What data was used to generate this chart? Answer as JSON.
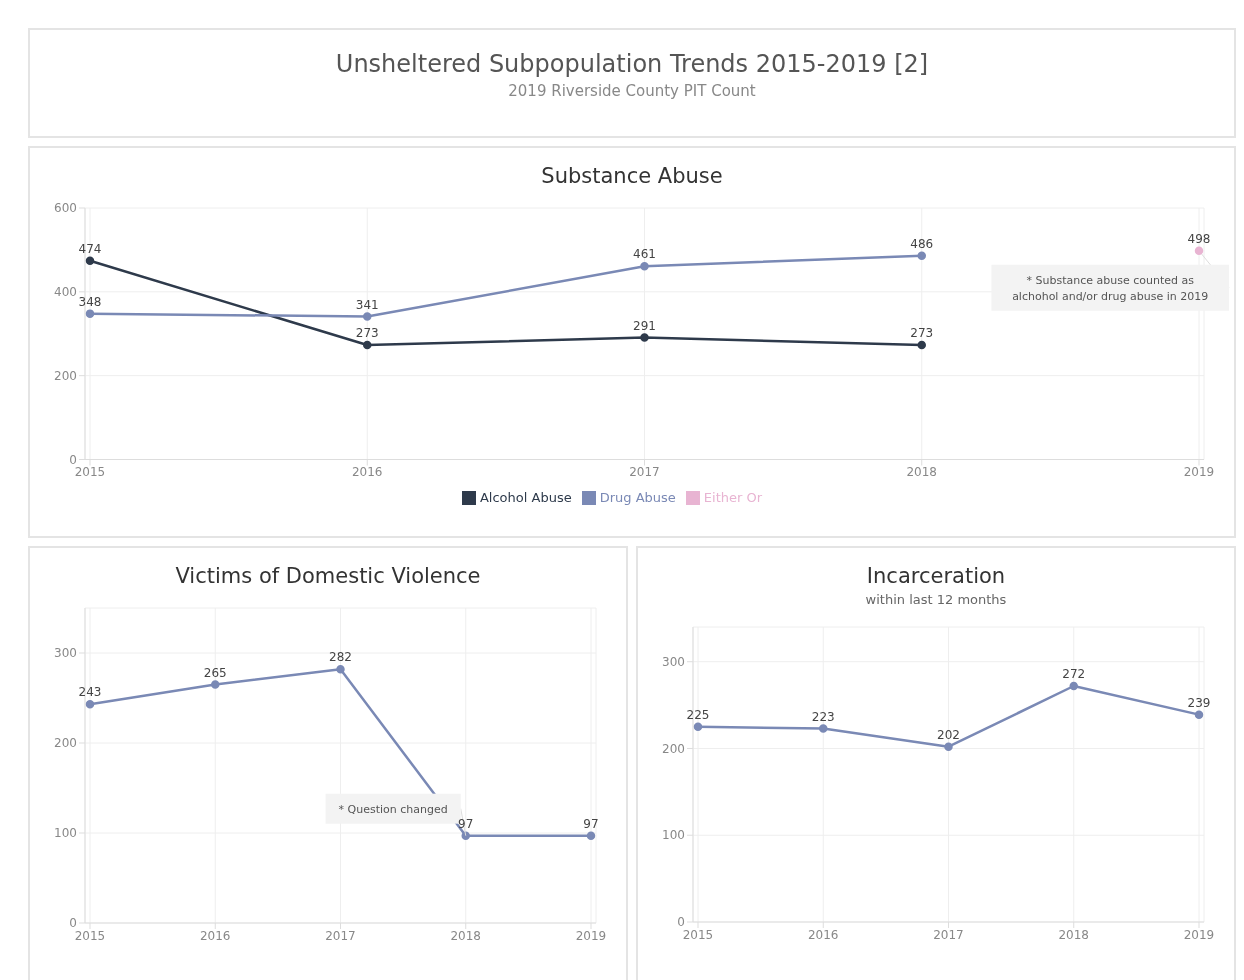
{
  "chart_data": [
    {
      "type": "other",
      "title": "Unsheltered Subpopulation Trends 2015-2019 [2]",
      "subtitle": "2019 Riverside County PIT Count"
    },
    {
      "type": "line",
      "title": "Substance Abuse",
      "categories": [
        "2015",
        "2016",
        "2017",
        "2018",
        "2019"
      ],
      "series": [
        {
          "name": "Alcohol Abuse",
          "color": "#2e3a4b",
          "values": [
            474,
            273,
            291,
            273,
            null
          ]
        },
        {
          "name": "Drug Abuse",
          "color": "#7a89b5",
          "values": [
            348,
            341,
            461,
            486,
            null
          ]
        },
        {
          "name": "Either Or",
          "color": "#e8b4d2",
          "values": [
            null,
            null,
            null,
            null,
            498
          ]
        }
      ],
      "ylim": [
        0,
        600
      ],
      "yticks": [
        0,
        200,
        400,
        600
      ],
      "grid": true,
      "legend": "bottom",
      "marker": "circle",
      "line_style": "solid",
      "data_labels": true,
      "annotations": [
        {
          "text": "* Substance abuse counted as alchohol and/or drug abuse in 2019",
          "x": "2019",
          "y": 498
        }
      ]
    },
    {
      "type": "line",
      "title": "Victims of Domestic Violence",
      "categories": [
        "2015",
        "2016",
        "2017",
        "2018",
        "2019"
      ],
      "series": [
        {
          "color": "#7a89b5",
          "values": [
            243,
            265,
            282,
            97,
            97
          ]
        }
      ],
      "ylim": [
        0,
        350
      ],
      "yticks": [
        0,
        100,
        200,
        300
      ],
      "grid": true,
      "marker": "circle",
      "line_style": "solid",
      "data_labels": true,
      "annotations": [
        {
          "text": "* Question changed",
          "x": "2018",
          "y": 97
        }
      ]
    },
    {
      "type": "line",
      "title": "Incarceration",
      "subtitle": "within last 12 months",
      "categories": [
        "2015",
        "2016",
        "2017",
        "2018",
        "2019"
      ],
      "series": [
        {
          "color": "#7a89b5",
          "values": [
            225,
            223,
            202,
            272,
            239
          ]
        }
      ],
      "ylim": [
        0,
        340
      ],
      "yticks": [
        0,
        100,
        200,
        300
      ],
      "grid": true,
      "marker": "circle",
      "line_style": "solid",
      "data_labels": true
    }
  ]
}
